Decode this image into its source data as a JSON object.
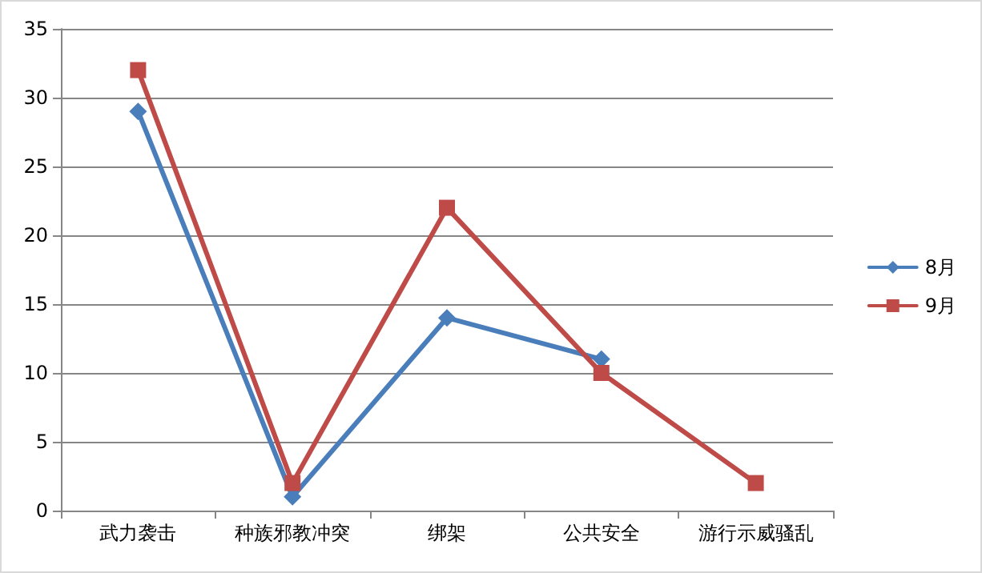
{
  "chart_data": {
    "type": "line",
    "categories": [
      "武力袭击",
      "种族邪教冲突",
      "绑架",
      "公共安全",
      "游行示威骚乱"
    ],
    "series": [
      {
        "name": "8月",
        "color": "#4a7ebb",
        "marker": "diamond",
        "values": [
          29,
          1,
          14,
          11,
          null
        ]
      },
      {
        "name": "9月",
        "color": "#be4b48",
        "marker": "square",
        "values": [
          32,
          2,
          22,
          10,
          2
        ]
      }
    ],
    "ylim": [
      0,
      35
    ],
    "yticks": [
      0,
      5,
      10,
      15,
      20,
      25,
      30,
      35
    ],
    "grid": "y",
    "legend": "right",
    "line_style": "solid"
  }
}
